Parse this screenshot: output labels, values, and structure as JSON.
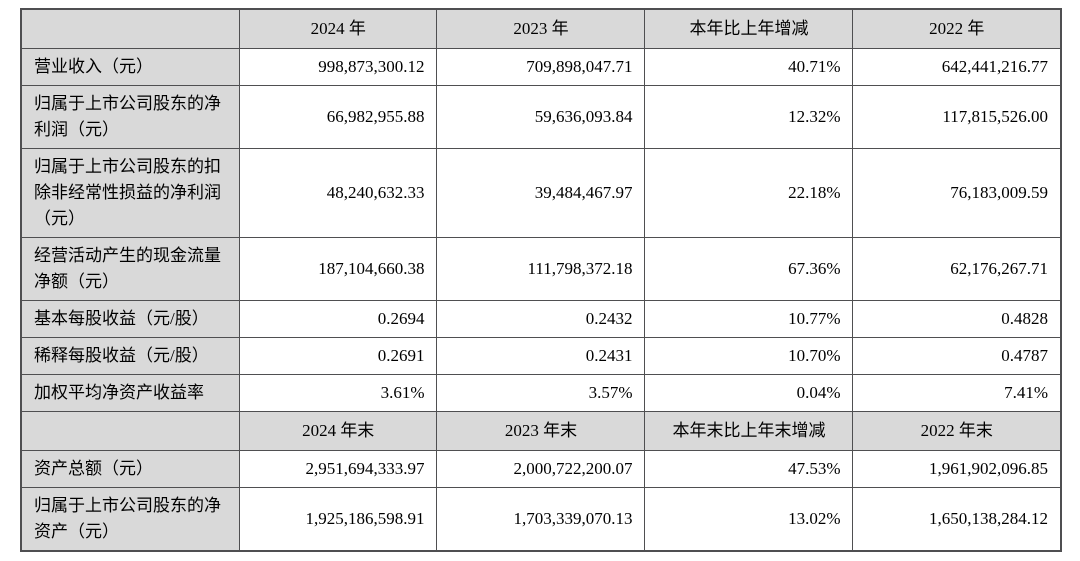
{
  "colors": {
    "header_bg": "#d9d9d9",
    "border": "#4f4f51",
    "text": "#000000",
    "page_bg": "#ffffff"
  },
  "table": {
    "header_annual": {
      "col0": "",
      "col1": "2024 年",
      "col2": "2023 年",
      "col3": "本年比上年增减",
      "col4": "2022 年"
    },
    "rows_annual": [
      {
        "label": "营业收入（元）",
        "y2024": "998,873,300.12",
        "y2023": "709,898,047.71",
        "change": "40.71%",
        "y2022": "642,441,216.77"
      },
      {
        "label": "归属于上市公司股东的净利润（元）",
        "y2024": "66,982,955.88",
        "y2023": "59,636,093.84",
        "change": "12.32%",
        "y2022": "117,815,526.00"
      },
      {
        "label": "归属于上市公司股东的扣除非经常性损益的净利润（元）",
        "y2024": "48,240,632.33",
        "y2023": "39,484,467.97",
        "change": "22.18%",
        "y2022": "76,183,009.59"
      },
      {
        "label": "经营活动产生的现金流量净额（元）",
        "y2024": "187,104,660.38",
        "y2023": "111,798,372.18",
        "change": "67.36%",
        "y2022": "62,176,267.71"
      },
      {
        "label": "基本每股收益（元/股）",
        "y2024": "0.2694",
        "y2023": "0.2432",
        "change": "10.77%",
        "y2022": "0.4828"
      },
      {
        "label": "稀释每股收益（元/股）",
        "y2024": "0.2691",
        "y2023": "0.2431",
        "change": "10.70%",
        "y2022": "0.4787"
      },
      {
        "label": "加权平均净资产收益率",
        "y2024": "3.61%",
        "y2023": "3.57%",
        "change": "0.04%",
        "y2022": "7.41%"
      }
    ],
    "header_eoy": {
      "col0": "",
      "col1": "2024 年末",
      "col2": "2023 年末",
      "col3": "本年末比上年末增减",
      "col4": "2022 年末"
    },
    "rows_eoy": [
      {
        "label": "资产总额（元）",
        "y2024": "2,951,694,333.97",
        "y2023": "2,000,722,200.07",
        "change": "47.53%",
        "y2022": "1,961,902,096.85"
      },
      {
        "label": "归属于上市公司股东的净资产（元）",
        "y2024": "1,925,186,598.91",
        "y2023": "1,703,339,070.13",
        "change": "13.02%",
        "y2022": "1,650,138,284.12"
      }
    ]
  }
}
